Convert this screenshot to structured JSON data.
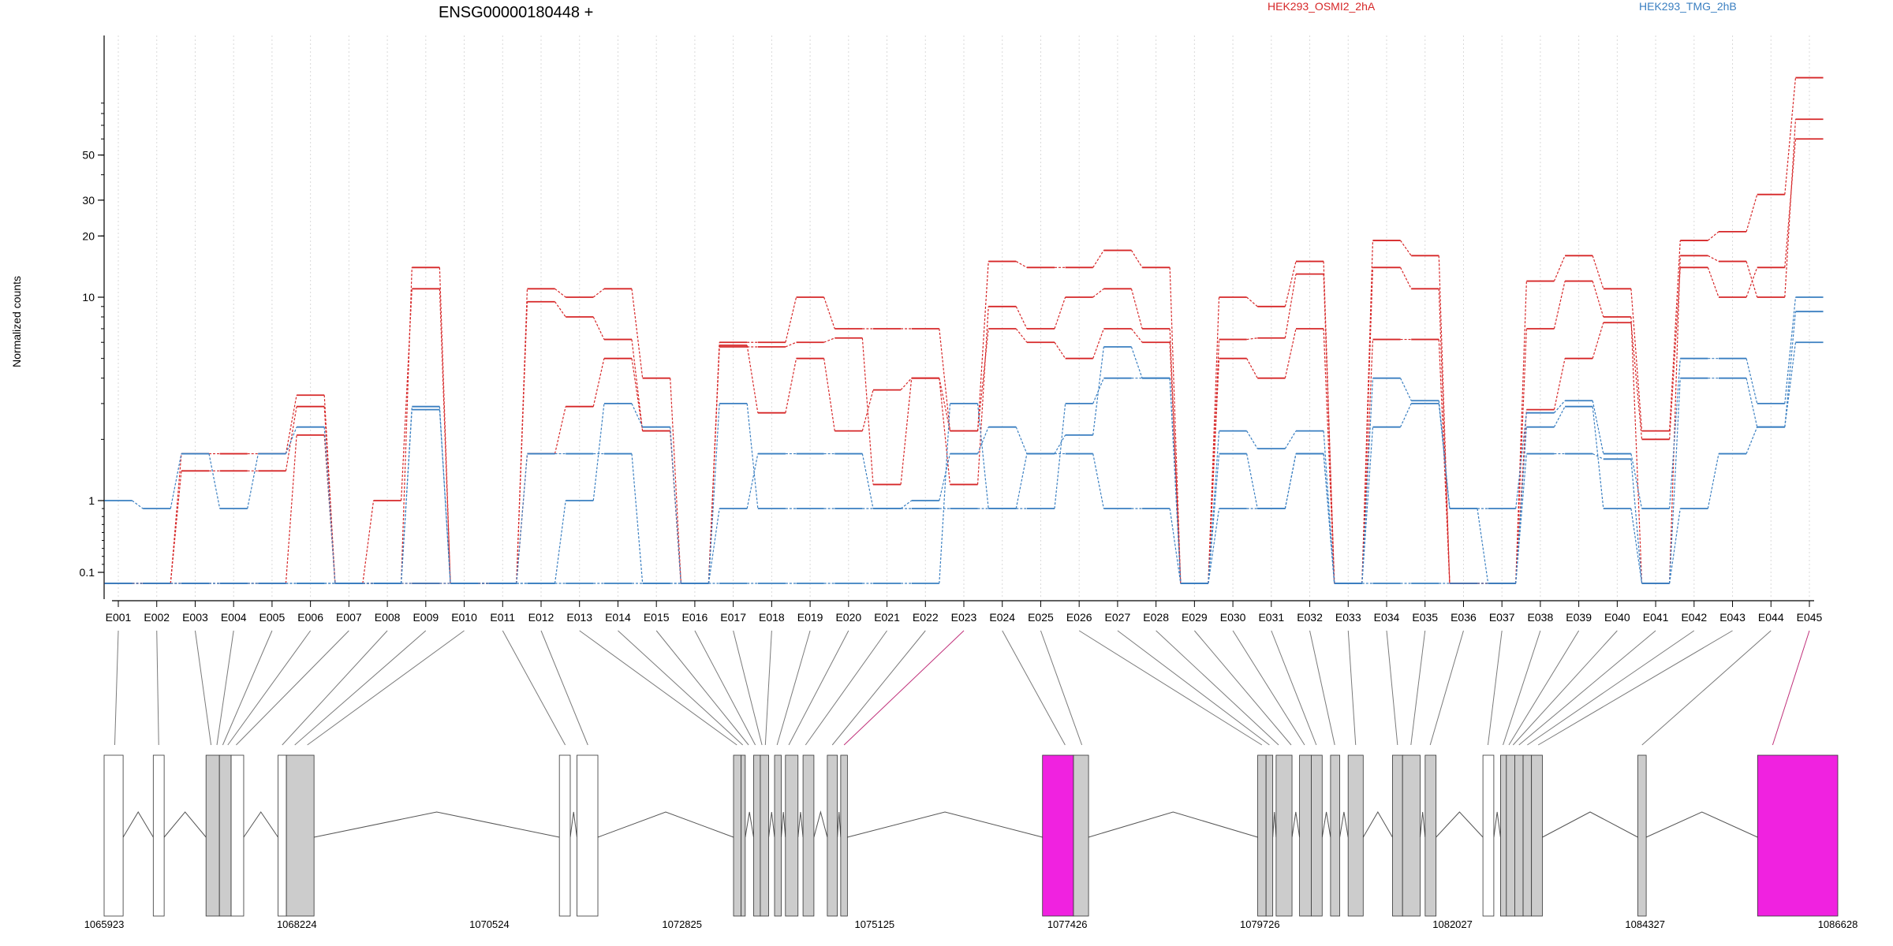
{
  "chart_data": {
    "type": "line",
    "title": "ENSG00000180448 +",
    "ylabel": "Normalized counts",
    "y_scale": "log",
    "yticks": [
      0.1,
      1,
      10,
      20,
      30,
      50
    ],
    "grid": "vertical dotted lines per exon",
    "legend": [
      {
        "name": "HEK293_OSMI2_2hA",
        "color": "#d62728"
      },
      {
        "name": "HEK293_TMG_2hB",
        "color": "#3a7fc1"
      }
    ],
    "exons": [
      "E001",
      "E002",
      "E003",
      "E004",
      "E005",
      "E006",
      "E007",
      "E008",
      "E009",
      "E010",
      "E011",
      "E012",
      "E013",
      "E014",
      "E015",
      "E016",
      "E017",
      "E018",
      "E019",
      "E020",
      "E021",
      "E022",
      "E023",
      "E024",
      "E025",
      "E026",
      "E027",
      "E028",
      "E029",
      "E030",
      "E031",
      "E032",
      "E033",
      "E034",
      "E035",
      "E036",
      "E037",
      "E038",
      "E039",
      "E040",
      "E041",
      "E042",
      "E043",
      "E044",
      "E045"
    ],
    "series": [
      {
        "name": "HEK293_OSMI2_2hA",
        "color": "#d62728",
        "values": [
          0,
          0,
          1.7,
          1.7,
          1.7,
          3.3,
          0,
          0,
          14,
          0,
          0,
          11,
          10,
          11,
          4,
          0,
          6,
          6,
          10,
          7,
          7,
          7,
          2.2,
          15,
          14,
          14,
          17,
          14,
          0,
          10,
          9,
          15,
          0,
          19,
          16,
          0,
          0,
          12,
          16,
          11,
          2.2,
          19,
          21,
          32,
          120
        ]
      },
      {
        "name": "HEK293_OSMI2_2hA",
        "color": "#d62728",
        "values": [
          0,
          0,
          1.4,
          1.4,
          1.4,
          2.9,
          0,
          1,
          11,
          0,
          0,
          9.5,
          8,
          6.2,
          2.2,
          0,
          5.7,
          5.7,
          6,
          6.3,
          1.2,
          4,
          1.2,
          9,
          7,
          10,
          11,
          7,
          0,
          6.2,
          6.3,
          13,
          0,
          14,
          11,
          0,
          0,
          7,
          12,
          8,
          0,
          16,
          15,
          10,
          75
        ]
      },
      {
        "name": "HEK293_OSMI2_2hA",
        "color": "#d62728",
        "values": [
          0,
          0,
          0,
          0,
          0,
          2.1,
          0,
          0,
          0,
          0,
          0,
          1.7,
          2.9,
          5,
          2.2,
          0,
          5.8,
          2.7,
          5,
          2.2,
          3.5,
          4,
          2.2,
          7,
          6,
          5,
          7,
          6,
          0,
          5,
          4,
          7,
          0,
          6.2,
          6.2,
          0,
          0,
          2.8,
          5,
          7.5,
          2.0,
          14,
          10,
          14,
          60
        ]
      },
      {
        "name": "HEK293_TMG_2hB",
        "color": "#3a7fc1",
        "values": [
          1,
          0.9,
          1.7,
          0.9,
          1.7,
          2.3,
          0,
          0,
          2.9,
          0,
          0,
          1.7,
          1.7,
          1.7,
          0,
          0,
          0.9,
          1.7,
          1.7,
          1.7,
          0.9,
          1,
          1.7,
          2.3,
          1.7,
          2.1,
          5.7,
          4,
          0,
          2.2,
          1.8,
          2.2,
          0,
          4,
          3.1,
          0.9,
          0.9,
          2.7,
          3.1,
          1.7,
          0.9,
          5,
          5,
          3,
          10
        ]
      },
      {
        "name": "HEK293_TMG_2hB",
        "color": "#3a7fc1",
        "values": [
          0,
          0,
          0,
          0,
          0,
          0,
          0,
          0,
          2.8,
          0,
          0,
          0,
          1,
          3,
          2.3,
          0,
          3,
          0.9,
          0.9,
          0.9,
          0.9,
          0.9,
          0.9,
          0.9,
          0.9,
          3,
          4,
          4,
          0,
          0.9,
          0.9,
          1.7,
          0,
          2.3,
          3,
          0.9,
          0,
          2.3,
          2.9,
          0.9,
          0,
          4,
          4,
          2.3,
          8.5
        ]
      },
      {
        "name": "HEK293_TMG_2hB",
        "color": "#3a7fc1",
        "values": [
          0,
          0,
          0,
          0,
          0,
          0,
          0,
          0,
          0,
          0,
          0,
          0,
          0,
          0,
          0,
          0,
          0,
          0,
          0,
          0,
          0,
          0,
          3,
          0.9,
          1.7,
          1.7,
          0.9,
          0.9,
          0,
          1.7,
          0.9,
          1.7,
          0,
          0,
          0,
          0,
          0,
          1.7,
          1.7,
          1.6,
          0,
          0.9,
          1.7,
          2.3,
          6
        ]
      }
    ]
  },
  "genomic_axis": {
    "ticks": [
      "1065923",
      "1068224",
      "1070524",
      "1072825",
      "1075125",
      "1077426",
      "1079726",
      "1082027",
      "1084327",
      "1086628"
    ],
    "start": 1065923,
    "end": 1086628
  },
  "gene_model": {
    "exons": [
      {
        "start": 1065923,
        "end": 1066150,
        "fill": "white"
      },
      {
        "start": 1066510,
        "end": 1066640,
        "fill": "white"
      },
      {
        "start": 1067140,
        "end": 1067300,
        "fill": "#cccccc"
      },
      {
        "start": 1067300,
        "end": 1067440,
        "fill": "#cccccc"
      },
      {
        "start": 1067440,
        "end": 1067590,
        "fill": "white"
      },
      {
        "start": 1068000,
        "end": 1068100,
        "fill": "white"
      },
      {
        "start": 1068100,
        "end": 1068430,
        "fill": "#cccccc"
      },
      {
        "start": 1071360,
        "end": 1071490,
        "fill": "white"
      },
      {
        "start": 1071570,
        "end": 1071820,
        "fill": "white"
      },
      {
        "start": 1073440,
        "end": 1073530,
        "fill": "#cccccc"
      },
      {
        "start": 1073530,
        "end": 1073580,
        "fill": "#cccccc"
      },
      {
        "start": 1073680,
        "end": 1073760,
        "fill": "#cccccc"
      },
      {
        "start": 1073760,
        "end": 1073860,
        "fill": "#cccccc"
      },
      {
        "start": 1073930,
        "end": 1074010,
        "fill": "#cccccc"
      },
      {
        "start": 1074060,
        "end": 1074210,
        "fill": "#cccccc"
      },
      {
        "start": 1074270,
        "end": 1074400,
        "fill": "#cccccc"
      },
      {
        "start": 1074560,
        "end": 1074680,
        "fill": "#cccccc"
      },
      {
        "start": 1074720,
        "end": 1074800,
        "fill": "#cccccc"
      },
      {
        "start": 1077130,
        "end": 1077500,
        "fill": "#f022e0"
      },
      {
        "start": 1077500,
        "end": 1077680,
        "fill": "#cccccc"
      },
      {
        "start": 1079700,
        "end": 1079800,
        "fill": "#cccccc"
      },
      {
        "start": 1079800,
        "end": 1079880,
        "fill": "#cccccc"
      },
      {
        "start": 1079920,
        "end": 1080110,
        "fill": "#cccccc"
      },
      {
        "start": 1080200,
        "end": 1080340,
        "fill": "#cccccc"
      },
      {
        "start": 1080340,
        "end": 1080470,
        "fill": "#cccccc"
      },
      {
        "start": 1080570,
        "end": 1080680,
        "fill": "#cccccc"
      },
      {
        "start": 1080780,
        "end": 1080960,
        "fill": "#cccccc"
      },
      {
        "start": 1081310,
        "end": 1081430,
        "fill": "#cccccc"
      },
      {
        "start": 1081430,
        "end": 1081640,
        "fill": "#cccccc"
      },
      {
        "start": 1081700,
        "end": 1081830,
        "fill": "#cccccc"
      },
      {
        "start": 1082390,
        "end": 1082520,
        "fill": "white"
      },
      {
        "start": 1082600,
        "end": 1082670,
        "fill": "#cccccc"
      },
      {
        "start": 1082670,
        "end": 1082770,
        "fill": "#cccccc"
      },
      {
        "start": 1082770,
        "end": 1082870,
        "fill": "#cccccc"
      },
      {
        "start": 1082870,
        "end": 1082970,
        "fill": "#cccccc"
      },
      {
        "start": 1082970,
        "end": 1083100,
        "fill": "#cccccc"
      },
      {
        "start": 1084240,
        "end": 1084340,
        "fill": "#cccccc"
      },
      {
        "start": 1085670,
        "end": 1086628,
        "fill": "#f022e0"
      }
    ],
    "connector_targets": [
      1066050,
      1066575,
      1067200,
      1067270,
      1067340,
      1067400,
      1067500,
      1068050,
      1068200,
      1068350,
      1071430,
      1071700,
      1073480,
      1073550,
      1073620,
      1073700,
      1073780,
      1073820,
      1073960,
      1074100,
      1074300,
      1074620,
      1074760,
      1077400,
      1077600,
      1079750,
      1079840,
      1079950,
      1080100,
      1080260,
      1080400,
      1080620,
      1080870,
      1081370,
      1081530,
      1081760,
      1082450,
      1082630,
      1082700,
      1082750,
      1082820,
      1082920,
      1083050,
      1084290,
      1085850
    ],
    "highlighted_connectors": [
      22,
      44
    ]
  }
}
